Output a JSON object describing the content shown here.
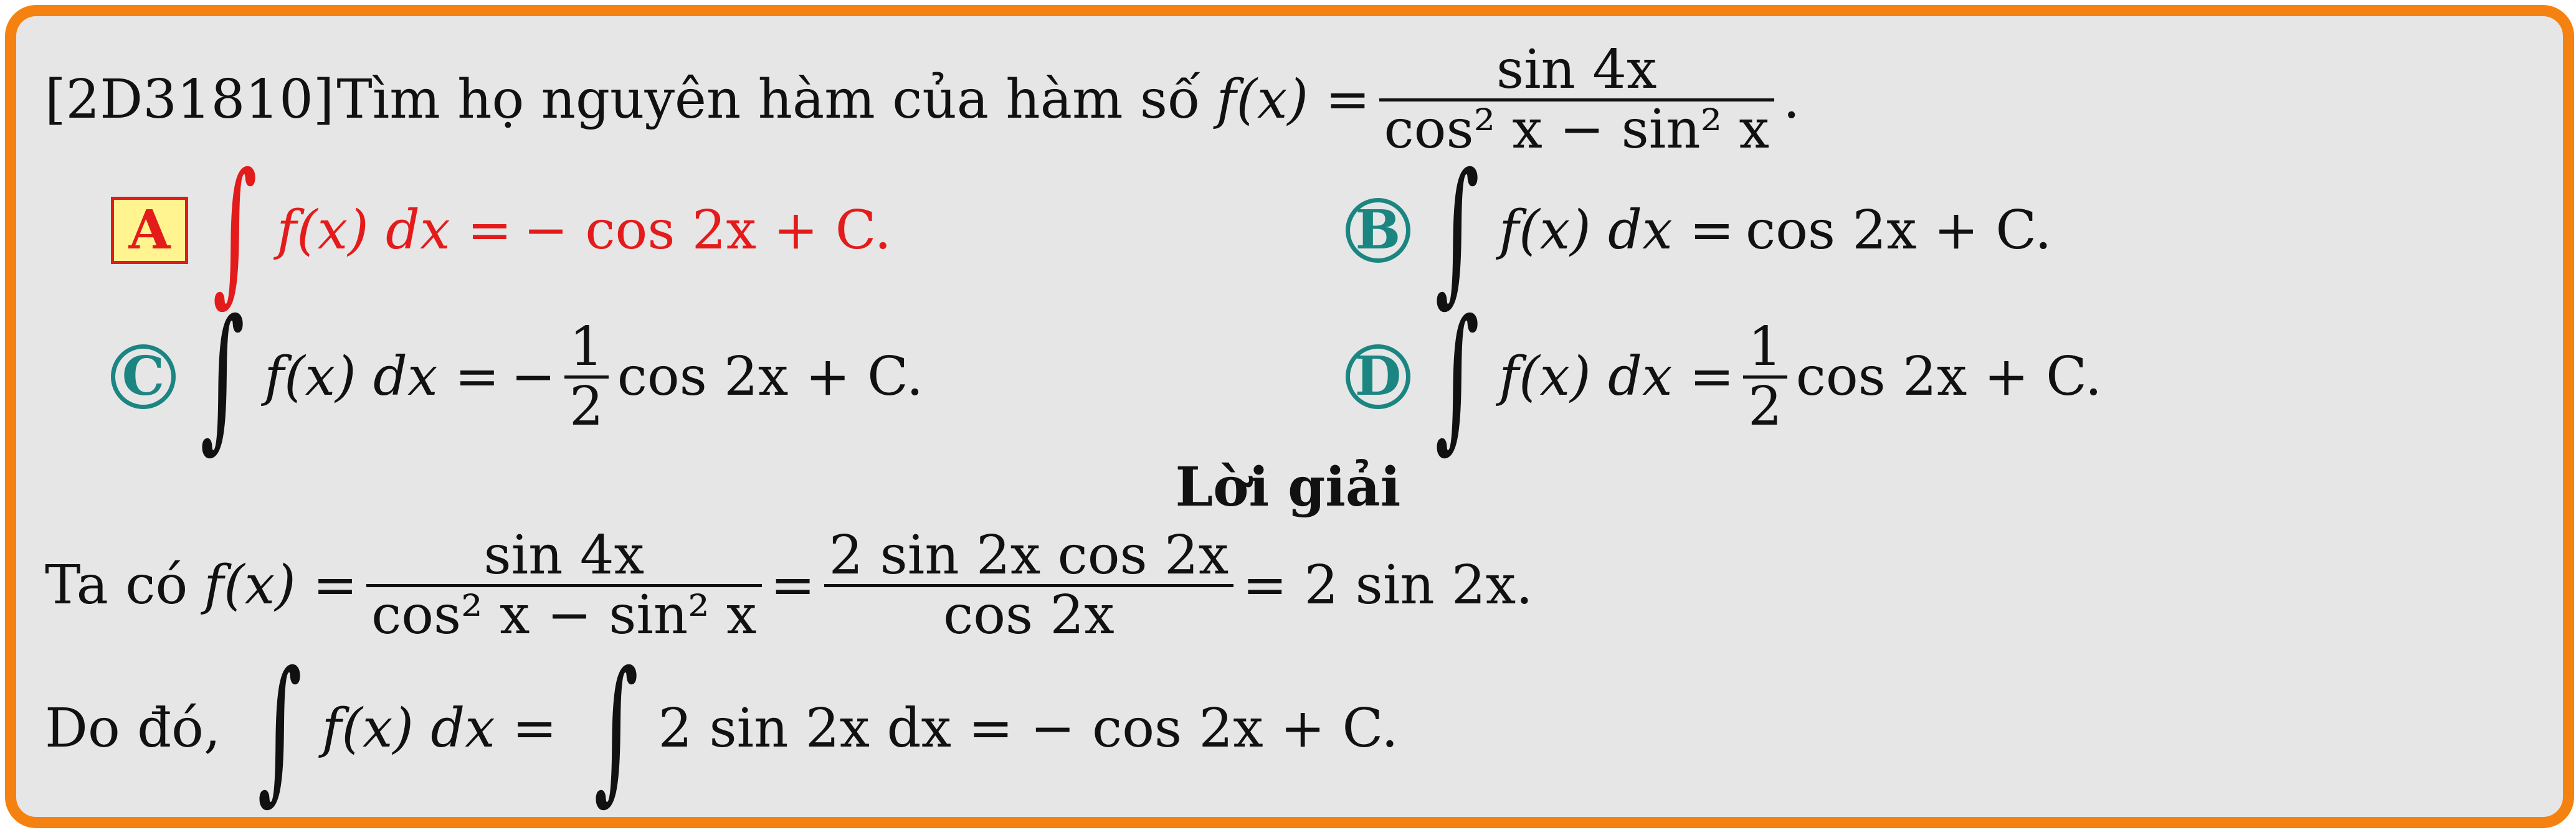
{
  "question": {
    "code": "[2D31810]",
    "text": "Tìm họ nguyên hàm của hàm số",
    "function_lhs": "f(x) =",
    "fraction_num": "sin 4x",
    "fraction_den": "cos² x − sin² x",
    "end": "."
  },
  "options": [
    {
      "label": "A",
      "integrand": "f(x) dx =",
      "rhs": "− cos 2x + C.",
      "correct": true
    },
    {
      "label": "B",
      "integrand": "f(x) dx =",
      "rhs": "cos 2x + C.",
      "correct": false
    },
    {
      "label": "C",
      "integrand": "f(x) dx =",
      "rhs_sign": "−",
      "frac_num": "1",
      "frac_den": "2",
      "rhs": "cos 2x + C.",
      "correct": false
    },
    {
      "label": "D",
      "integrand": "f(x) dx =",
      "rhs_sign": "",
      "frac_num": "1",
      "frac_den": "2",
      "rhs": "cos 2x + C.",
      "correct": false
    }
  ],
  "solution": {
    "heading": "Lời giải",
    "line1_prefix": "Ta có",
    "line1_lhs": "f(x) =",
    "line1_frac1_num": "sin 4x",
    "line1_frac1_den": "cos² x − sin² x",
    "line1_eq": "=",
    "line1_frac2_num": "2 sin 2x cos 2x",
    "line1_frac2_den": "cos 2x",
    "line1_rhs": "= 2 sin 2x.",
    "line2_prefix": "Do đó,",
    "line2_integrand1": "f(x) dx =",
    "line2_integrand2": "2 sin 2x dx = − cos 2x + C."
  },
  "colors": {
    "border": "#f58210",
    "background": "#e6e6e6",
    "correct": "#e41b1b",
    "label": "#1b8582",
    "highlight": "#fff48f"
  }
}
